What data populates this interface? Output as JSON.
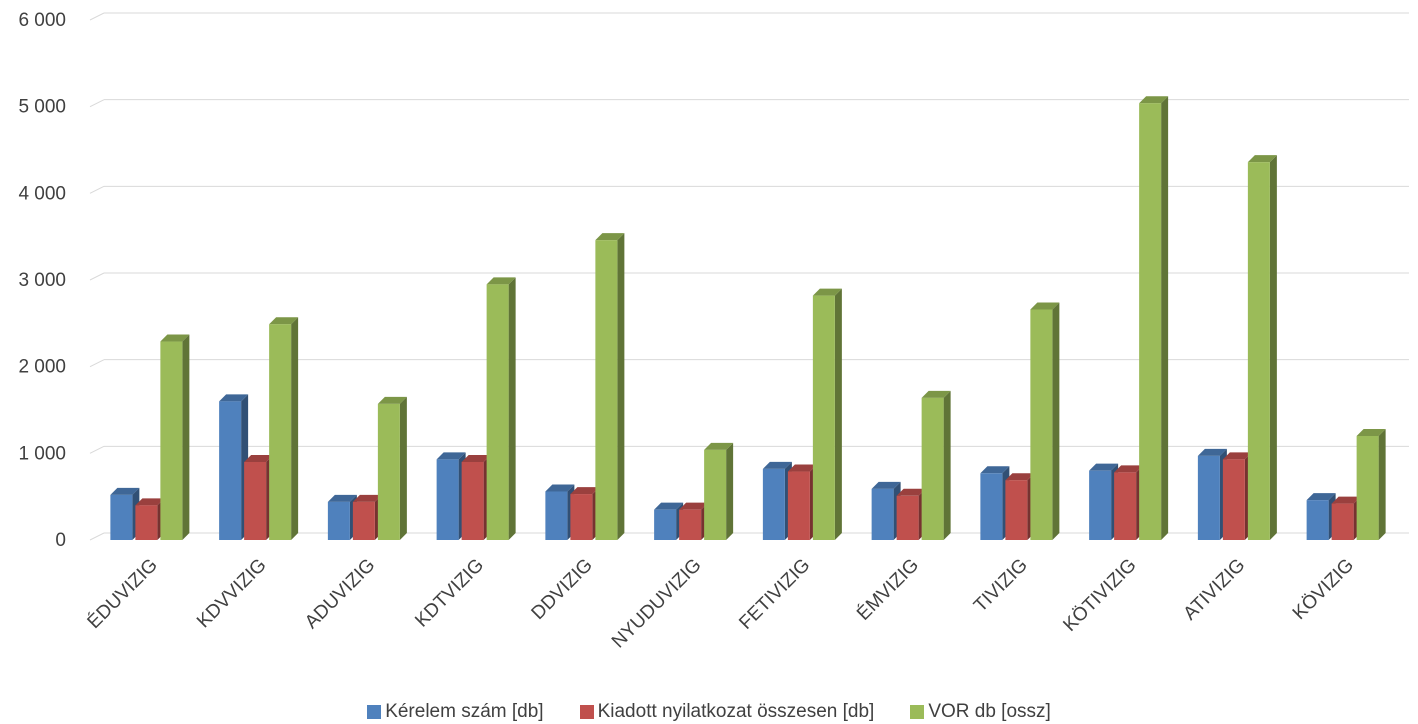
{
  "chart_data": {
    "type": "bar",
    "title": "",
    "xlabel": "",
    "ylabel": "",
    "ylim": [
      0,
      6000
    ],
    "yticks": [
      0,
      1000,
      2000,
      3000,
      4000,
      5000,
      6000
    ],
    "ytick_labels": [
      "0",
      "1 000",
      "2 000",
      "3 000",
      "4 000",
      "5 000",
      "6 000"
    ],
    "grid": "horizontal",
    "legend_position": "bottom",
    "categories": [
      "ÉDUVIZIG",
      "KDVVIZIG",
      "ADUVIZIG",
      "KDTVIZIG",
      "DDVIZIG",
      "NYUDUVIZIG",
      "FETIVIZIG",
      "ÉMVIZIG",
      "TIVIZIG",
      "KÖTIVIZIG",
      "ATIVIZIG",
      "KÖVIZIG"
    ],
    "series": [
      {
        "name": "Kérelem szám [db]",
        "color": "#4F81BD",
        "values": [
          520,
          1600,
          440,
          930,
          560,
          350,
          820,
          590,
          770,
          800,
          970,
          460
        ]
      },
      {
        "name": "Kiadott nyilatkozat összesen [db]",
        "color": "#C0504D",
        "values": [
          400,
          900,
          440,
          900,
          530,
          350,
          790,
          510,
          690,
          780,
          930,
          420
        ]
      },
      {
        "name": "VOR db [ossz]",
        "color": "#9BBB59",
        "values": [
          2290,
          2490,
          1570,
          2950,
          3460,
          1040,
          2820,
          1640,
          2660,
          5040,
          4360,
          1200
        ]
      }
    ]
  }
}
